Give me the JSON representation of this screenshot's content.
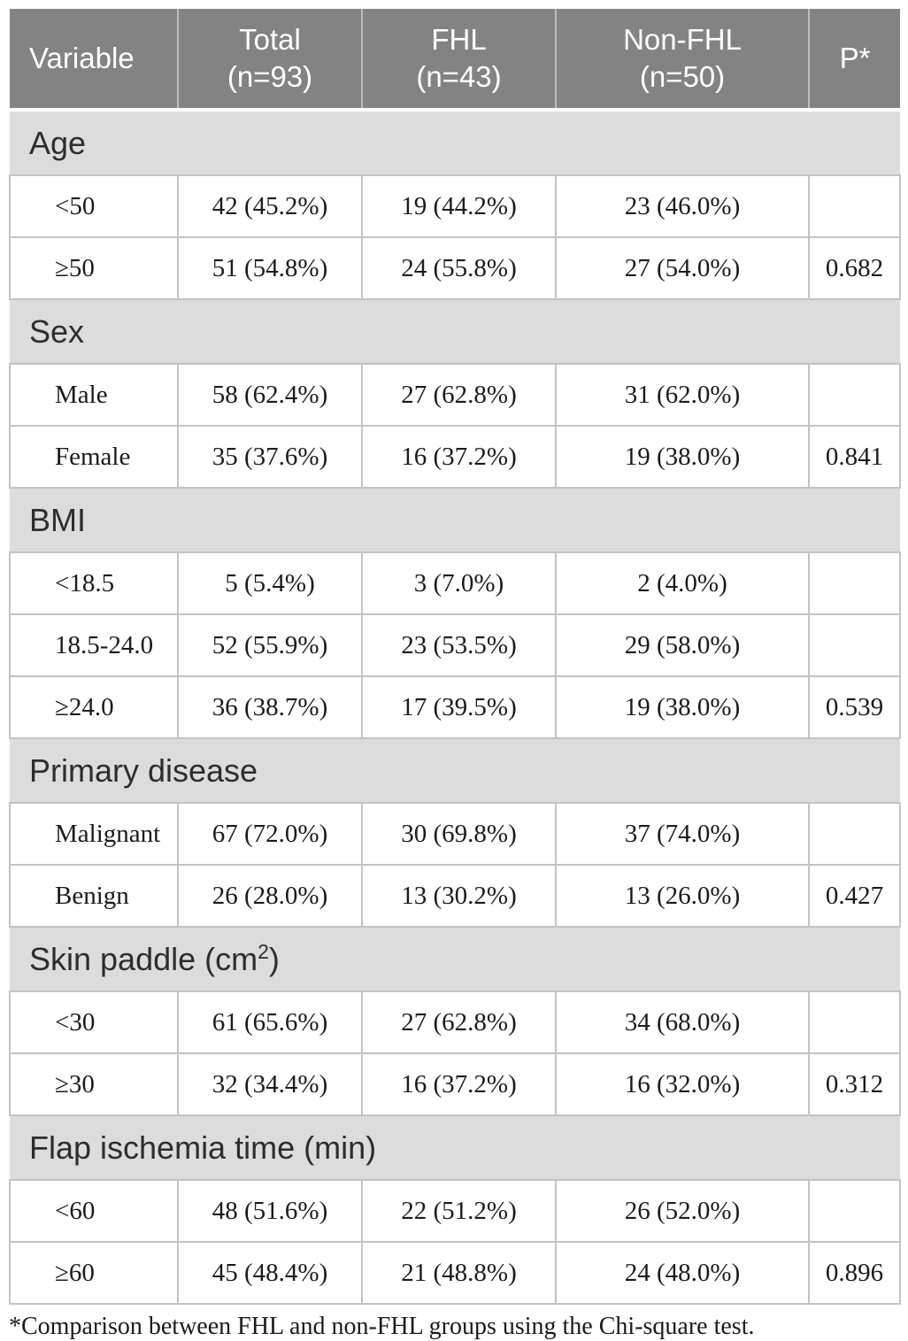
{
  "colors": {
    "header_bg": "#838383",
    "header_text": "#ffffff",
    "header_divider": "#bdbdbd",
    "section_bg": "#dcdcdc",
    "cell_border": "#c3c3c3",
    "body_text": "#1b1b1b",
    "section_text": "#2d2d2d"
  },
  "columns": [
    {
      "id": "variable",
      "label": "Variable",
      "lines": [
        "Variable"
      ]
    },
    {
      "id": "total",
      "label": "Total (n=93)",
      "lines": [
        "Total",
        "(n=93)"
      ]
    },
    {
      "id": "fhl",
      "label": "FHL (n=43)",
      "lines": [
        "FHL",
        "(n=43)"
      ]
    },
    {
      "id": "nonfhl",
      "label": "Non-FHL (n=50)",
      "lines": [
        "Non-FHL",
        "(n=50)"
      ]
    },
    {
      "id": "p",
      "label": "P*",
      "lines": [
        "P*"
      ]
    }
  ],
  "sections": [
    {
      "title": "Age",
      "rows": [
        {
          "variable": "<50",
          "total": "42 (45.2%)",
          "fhl": "19 (44.2%)",
          "nonfhl": "23 (46.0%)",
          "p": ""
        },
        {
          "variable": "≥50",
          "total": "51 (54.8%)",
          "fhl": "24 (55.8%)",
          "nonfhl": "27 (54.0%)",
          "p": "0.682"
        }
      ]
    },
    {
      "title": "Sex",
      "rows": [
        {
          "variable": "Male",
          "total": "58 (62.4%)",
          "fhl": "27 (62.8%)",
          "nonfhl": "31 (62.0%)",
          "p": ""
        },
        {
          "variable": "Female",
          "total": "35 (37.6%)",
          "fhl": "16 (37.2%)",
          "nonfhl": "19 (38.0%)",
          "p": "0.841"
        }
      ]
    },
    {
      "title": "BMI",
      "rows": [
        {
          "variable": "<18.5",
          "total": "5 (5.4%)",
          "fhl": "3 (7.0%)",
          "nonfhl": "2 (4.0%)",
          "p": ""
        },
        {
          "variable": "18.5-24.0",
          "total": "52 (55.9%)",
          "fhl": "23 (53.5%)",
          "nonfhl": "29 (58.0%)",
          "p": ""
        },
        {
          "variable": "≥24.0",
          "total": "36 (38.7%)",
          "fhl": "17 (39.5%)",
          "nonfhl": "19 (38.0%)",
          "p": "0.539"
        }
      ]
    },
    {
      "title": "Primary disease",
      "rows": [
        {
          "variable": "Malignant",
          "total": "67 (72.0%)",
          "fhl": "30 (69.8%)",
          "nonfhl": "37 (74.0%)",
          "p": ""
        },
        {
          "variable": "Benign",
          "total": "26 (28.0%)",
          "fhl": "13 (30.2%)",
          "nonfhl": "13 (26.0%)",
          "p": "0.427"
        }
      ]
    },
    {
      "title": "Skin paddle (cm",
      "title_sup": "2",
      "title_suffix": ")",
      "rows": [
        {
          "variable": "<30",
          "total": "61 (65.6%)",
          "fhl": "27 (62.8%)",
          "nonfhl": "34 (68.0%)",
          "p": ""
        },
        {
          "variable": "≥30",
          "total": "32 (34.4%)",
          "fhl": "16 (37.2%)",
          "nonfhl": "16 (32.0%)",
          "p": "0.312"
        }
      ]
    },
    {
      "title": "Flap ischemia time (min)",
      "rows": [
        {
          "variable": "<60",
          "total": "48 (51.6%)",
          "fhl": "22 (51.2%)",
          "nonfhl": "26 (52.0%)",
          "p": ""
        },
        {
          "variable": "≥60",
          "total": "45 (48.4%)",
          "fhl": "21 (48.8%)",
          "nonfhl": "24 (48.0%)",
          "p": "0.896"
        }
      ]
    }
  ],
  "footnote": "*Comparison between FHL and non-FHL groups using the Chi-square test."
}
